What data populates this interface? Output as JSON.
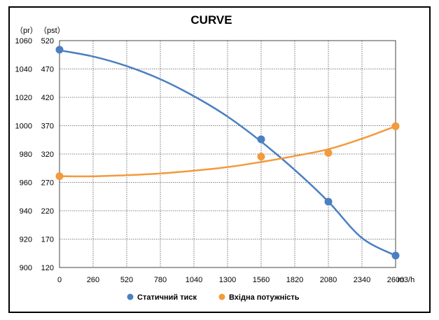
{
  "chart_data": {
    "type": "line",
    "title": "CURVE",
    "y_left_unit": "（pr）",
    "y_right_unit": "（pst）",
    "x_unit": "m3/h",
    "x_ticks": [
      0,
      260,
      520,
      780,
      1040,
      1300,
      1560,
      1820,
      2080,
      2340,
      2600
    ],
    "x_tick_labels": [
      "0",
      "260",
      "520",
      "780",
      "1040",
      "1300",
      "1560",
      "1820",
      "2080",
      "2340",
      "2600"
    ],
    "xlim": [
      0,
      2600
    ],
    "y_left_ticks": [
      "900",
      "920",
      "940",
      "960",
      "980",
      "1000",
      "1020",
      "1040",
      "1060"
    ],
    "y_right_ticks": [
      "120",
      "170",
      "220",
      "270",
      "320",
      "370",
      "420",
      "470",
      "520"
    ],
    "y_left_lim": [
      900,
      1060
    ],
    "y_right_lim": [
      120,
      520
    ],
    "grid": true,
    "legend_position": "bottom",
    "series": [
      {
        "name": "Статичний тиск",
        "axis": "right",
        "color": "#4a7fc1",
        "points": [
          [
            0,
            504
          ],
          [
            1560,
            346
          ],
          [
            2080,
            236
          ],
          [
            2600,
            141
          ]
        ],
        "curve_x": [
          0,
          260,
          520,
          780,
          1040,
          1300,
          1560,
          1820,
          2080,
          2340,
          2600
        ],
        "curve_y": [
          503,
          492,
          475,
          452,
          422,
          386,
          342,
          292,
          236,
          172,
          141
        ]
      },
      {
        "name": "Вхідна потужність",
        "axis": "left",
        "color": "#f39a3c",
        "points": [
          [
            0,
            964.4
          ],
          [
            1560,
            978.2
          ],
          [
            2080,
            980.8
          ],
          [
            2600,
            999.6
          ]
        ],
        "curve_x": [
          0,
          260,
          520,
          780,
          1040,
          1300,
          1560,
          1820,
          2080,
          2340,
          2600
        ],
        "curve_y": [
          964.4,
          964.3,
          965.1,
          966.3,
          968.3,
          970.8,
          974.4,
          978.6,
          983.4,
          990.8,
          999.6
        ]
      }
    ]
  }
}
